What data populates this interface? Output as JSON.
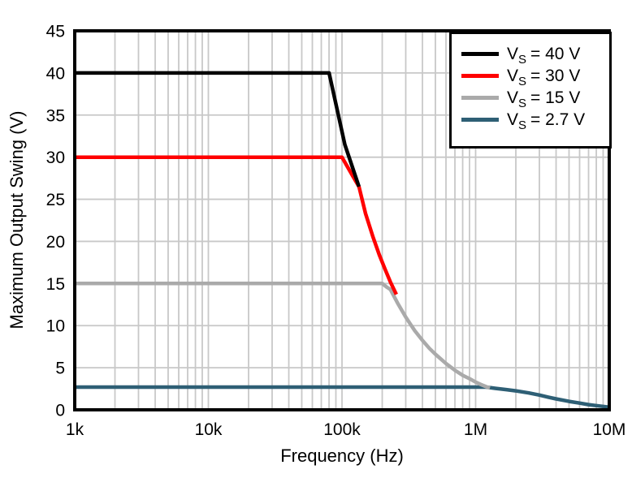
{
  "chart_data": {
    "type": "line",
    "title": "",
    "xlabel": "Frequency (Hz)",
    "ylabel": "Maximum Output Swing (V)",
    "x_scale": "log",
    "xlim": [
      1000,
      10000000
    ],
    "ylim": [
      0,
      45
    ],
    "x_ticks": [
      {
        "value": 1000,
        "label": "1k"
      },
      {
        "value": 10000,
        "label": "10k"
      },
      {
        "value": 100000,
        "label": "100k"
      },
      {
        "value": 1000000,
        "label": "1M"
      },
      {
        "value": 10000000,
        "label": "10M"
      }
    ],
    "y_ticks": [
      0,
      5,
      10,
      15,
      20,
      25,
      30,
      35,
      40,
      45
    ],
    "grid": true,
    "grid_color": "#c8c8c8",
    "frame_color": "#000000",
    "legend_position": "top-right",
    "series": [
      {
        "name": "VS = 40 V",
        "color": "#000000",
        "points": [
          [
            1000,
            40
          ],
          [
            80000,
            40
          ],
          [
            105000,
            31.5
          ],
          [
            134000,
            26.5
          ]
        ]
      },
      {
        "name": "VS = 30 V",
        "color": "#ff0000",
        "points": [
          [
            1000,
            30
          ],
          [
            100000,
            30
          ],
          [
            120000,
            27.8
          ],
          [
            134000,
            26.5
          ],
          [
            150000,
            23.3
          ],
          [
            170000,
            20.6
          ],
          [
            190000,
            18.4
          ],
          [
            210000,
            16.7
          ],
          [
            230000,
            15.2
          ],
          [
            255000,
            13.7
          ]
        ]
      },
      {
        "name": "VS = 15 V",
        "color": "#aaaaaa",
        "points": [
          [
            1000,
            15
          ],
          [
            200000,
            15
          ],
          [
            215000,
            14.6
          ],
          [
            230000,
            14.3
          ],
          [
            260000,
            12.7
          ],
          [
            300000,
            11.0
          ],
          [
            350000,
            9.4
          ],
          [
            400000,
            8.25
          ],
          [
            450000,
            7.3
          ],
          [
            500000,
            6.6
          ],
          [
            600000,
            5.5
          ],
          [
            700000,
            4.7
          ],
          [
            800000,
            4.1
          ],
          [
            900000,
            3.7
          ],
          [
            1000000,
            3.3
          ],
          [
            1100000,
            3.0
          ],
          [
            1200000,
            2.75
          ],
          [
            1280000,
            2.6
          ]
        ]
      },
      {
        "name": "VS = 2.7 V",
        "color": "#2e5f75",
        "points": [
          [
            1000,
            2.7
          ],
          [
            1200000,
            2.7
          ],
          [
            1400000,
            2.55
          ],
          [
            1700000,
            2.4
          ],
          [
            2000000,
            2.25
          ],
          [
            2500000,
            2.0
          ],
          [
            3000000,
            1.75
          ],
          [
            3500000,
            1.5
          ],
          [
            4000000,
            1.3
          ],
          [
            5000000,
            1.0
          ],
          [
            6000000,
            0.8
          ],
          [
            7000000,
            0.62
          ],
          [
            8000000,
            0.5
          ],
          [
            9000000,
            0.4
          ],
          [
            10000000,
            0.32
          ]
        ]
      }
    ]
  },
  "legend": {
    "items": [
      {
        "base": "V",
        "sub": "S",
        "rest": "= 40 V",
        "color": "#000000"
      },
      {
        "base": "V",
        "sub": "S",
        "rest": "= 30 V",
        "color": "#ff0000"
      },
      {
        "base": "V",
        "sub": "S",
        "rest": "= 15 V",
        "color": "#aaaaaa"
      },
      {
        "base": "V",
        "sub": "S",
        "rest": "= 2.7 V",
        "color": "#2e5f75"
      }
    ]
  }
}
